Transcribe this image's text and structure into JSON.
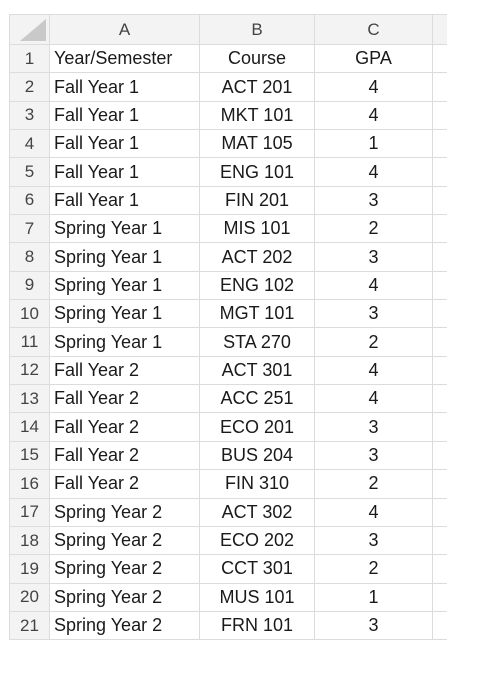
{
  "columns": [
    "A",
    "B",
    "C"
  ],
  "rows": [
    {
      "num": "1",
      "a": "Year/Semester",
      "b": "Course",
      "c": "GPA"
    },
    {
      "num": "2",
      "a": "Fall Year 1",
      "b": "ACT 201",
      "c": "4"
    },
    {
      "num": "3",
      "a": "Fall Year 1",
      "b": "MKT 101",
      "c": "4"
    },
    {
      "num": "4",
      "a": "Fall Year 1",
      "b": "MAT 105",
      "c": "1"
    },
    {
      "num": "5",
      "a": "Fall Year 1",
      "b": "ENG 101",
      "c": "4"
    },
    {
      "num": "6",
      "a": "Fall Year 1",
      "b": "FIN 201",
      "c": "3"
    },
    {
      "num": "7",
      "a": "Spring Year 1",
      "b": "MIS 101",
      "c": "2"
    },
    {
      "num": "8",
      "a": "Spring Year 1",
      "b": "ACT 202",
      "c": "3"
    },
    {
      "num": "9",
      "a": "Spring Year 1",
      "b": "ENG 102",
      "c": "4"
    },
    {
      "num": "10",
      "a": "Spring Year 1",
      "b": "MGT 101",
      "c": "3"
    },
    {
      "num": "11",
      "a": "Spring Year 1",
      "b": "STA 270",
      "c": "2"
    },
    {
      "num": "12",
      "a": "Fall Year 2",
      "b": "ACT 301",
      "c": "4"
    },
    {
      "num": "13",
      "a": "Fall Year 2",
      "b": "ACC 251",
      "c": "4"
    },
    {
      "num": "14",
      "a": "Fall Year 2",
      "b": "ECO 201",
      "c": "3"
    },
    {
      "num": "15",
      "a": "Fall Year 2",
      "b": "BUS 204",
      "c": "3"
    },
    {
      "num": "16",
      "a": "Fall Year 2",
      "b": "FIN 310",
      "c": "2"
    },
    {
      "num": "17",
      "a": "Spring Year 2",
      "b": "ACT 302",
      "c": "4"
    },
    {
      "num": "18",
      "a": "Spring Year 2",
      "b": "ECO 202",
      "c": "3"
    },
    {
      "num": "19",
      "a": "Spring Year 2",
      "b": "CCT 301",
      "c": "2"
    },
    {
      "num": "20",
      "a": "Spring Year 2",
      "b": "MUS 101",
      "c": "1"
    },
    {
      "num": "21",
      "a": "Spring Year 2",
      "b": "FRN 101",
      "c": "3"
    }
  ]
}
